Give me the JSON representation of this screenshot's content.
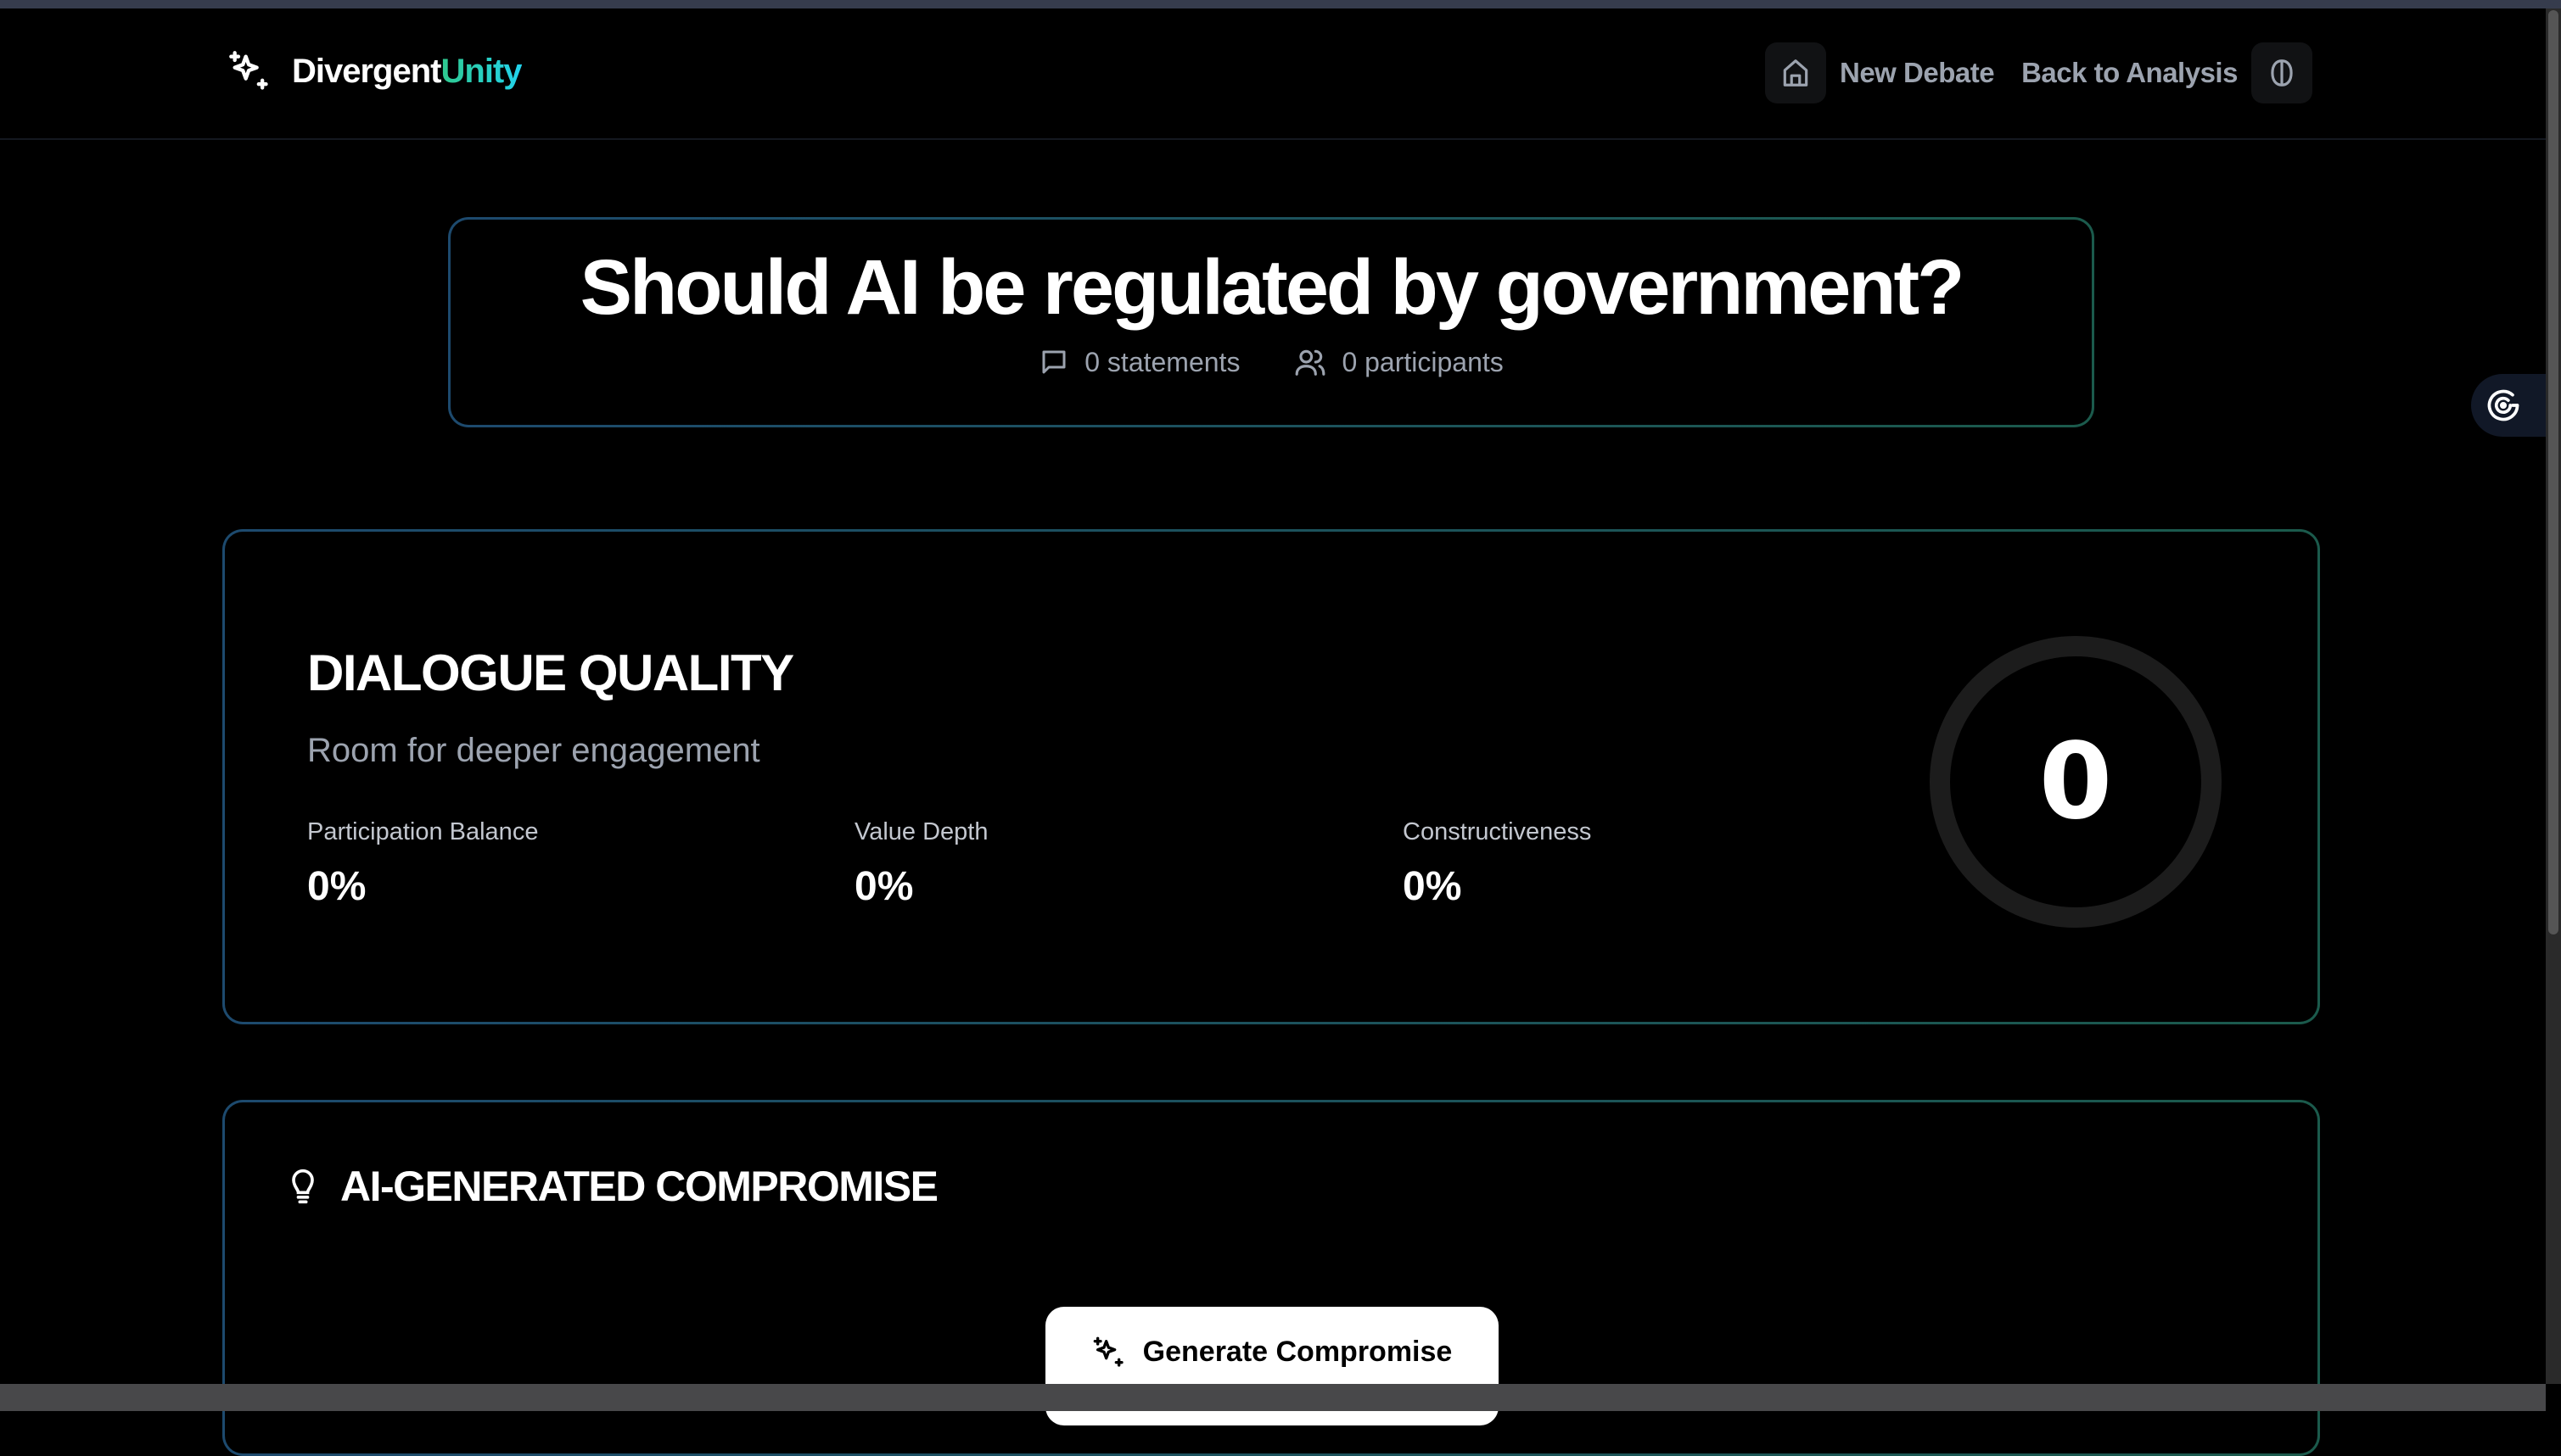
{
  "brand": {
    "name_primary": "Divergent",
    "name_accent": "Unity",
    "icon": "sparkles-icon"
  },
  "nav": {
    "home_icon": "home-icon",
    "new_debate": "New Debate",
    "back_to_analysis": "Back to Analysis",
    "brain_icon": "brain-icon"
  },
  "debate": {
    "title": "Should AI be regulated by government?",
    "statements": "0 statements",
    "participants": "0 participants"
  },
  "quality": {
    "heading": "DIALOGUE QUALITY",
    "subtitle": "Room for deeper engagement",
    "score": "0",
    "score_fraction": 0,
    "metrics": [
      {
        "label": "Participation Balance",
        "value": "0%"
      },
      {
        "label": "Value Depth",
        "value": "0%"
      },
      {
        "label": "Constructiveness",
        "value": "0%"
      }
    ]
  },
  "compromise": {
    "heading": "AI-GENERATED COMPROMISE",
    "button": "Generate Compromise"
  },
  "colors": {
    "accent_green": "#2fc98e",
    "accent_cyan": "#22d3ee",
    "border_blue": "#1d4a6e",
    "border_green": "#1b5a4c"
  }
}
